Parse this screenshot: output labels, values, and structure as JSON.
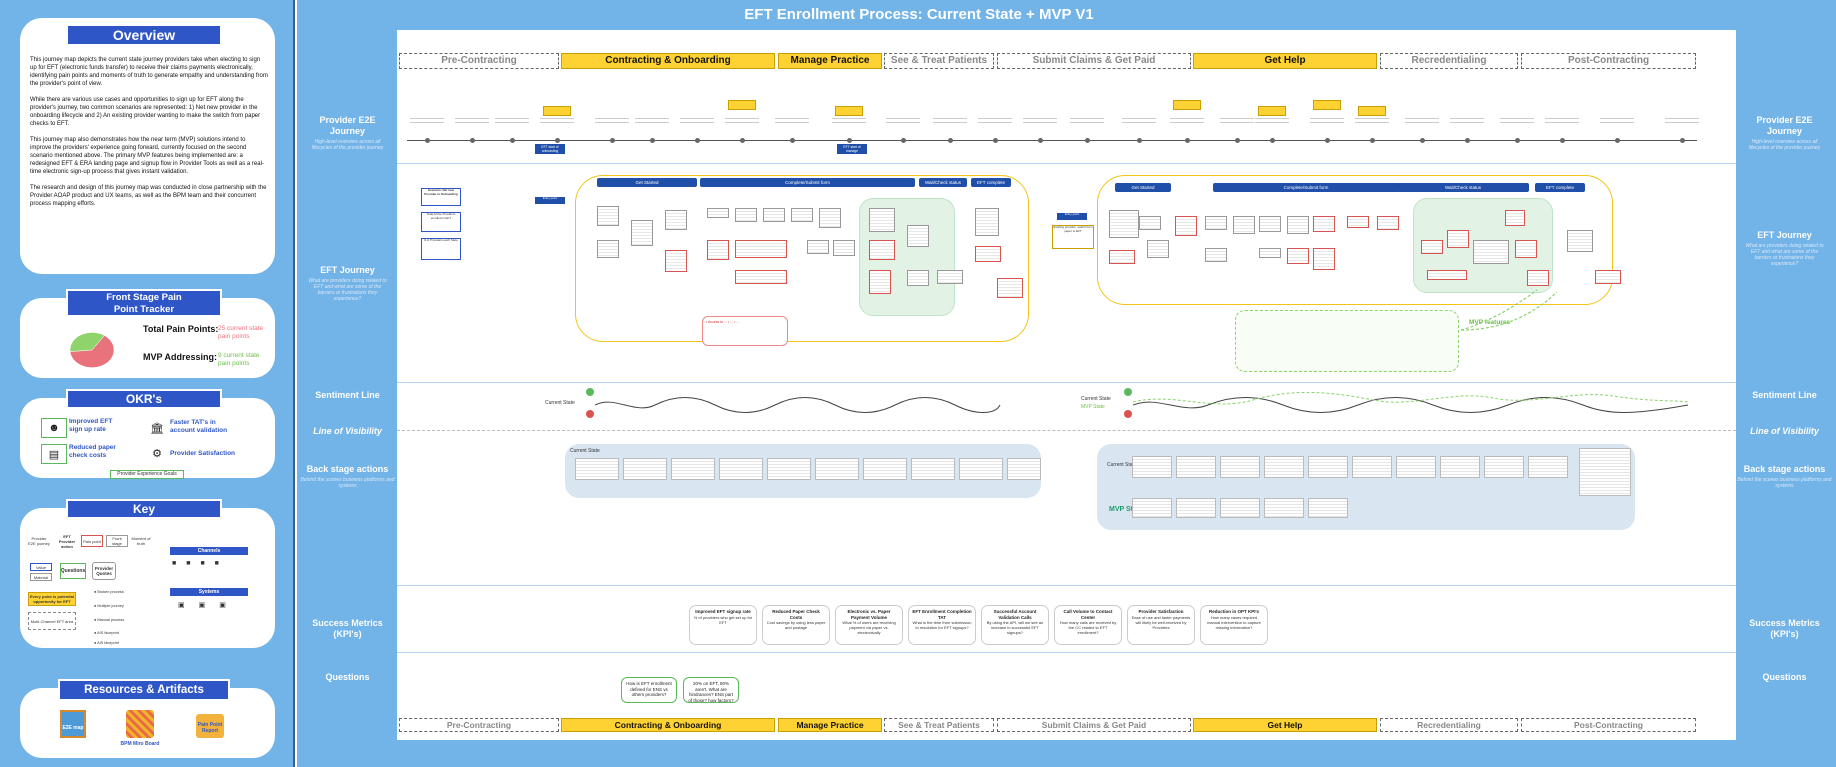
{
  "overview": {
    "title": "Overview",
    "p1": "This journey map depicts the current state journey providers take when electing to sign up for EFT (electronic funds transfer) to receive their claims payments electronically, identifying pain points and moments of truth to generate empathy and understanding from the provider's point of view.",
    "p2": "While there are various use cases and opportunities to sign up for EFT along the provider's journey, two common scenarios are represented: 1) Net new provider in the onboarding lifecycle and 2) An existing provider wanting to make the switch from paper checks to EFT.",
    "p3": "This journey map also demonstrates how the near term (MVP) solutions intend to improve the providers' experience going forward, currently focused on the second scenario mentioned above. The primary MVP features being implemented are: a redesigned EFT & ERA landing page and signup flow in Provider Tools as well as a real-time electronic sign-up process that gives instant validation.",
    "p4": "The research and design of this journey map was conducted in close partnership with the Provider AOAP product and UX teams, as well as the BPM team and their concurrent process mapping efforts."
  },
  "pain_tracker": {
    "title_line1": "Front Stage Pain",
    "title_line2": "Point Tracker",
    "total_label": "Total Pain Points:",
    "total_value": "25 current state pain points",
    "mvp_label": "MVP Addressing:",
    "mvp_value": "9 current state pain points",
    "pie_values": [
      64,
      36
    ],
    "colors": {
      "current": "#e9737c",
      "mvp": "#8fd46a"
    }
  },
  "okr": {
    "title": "OKR's",
    "items": [
      {
        "label": "Improved EFT sign up rate",
        "icon": "users-icon"
      },
      {
        "label": "Faster TAT's in account validation",
        "icon": "bank-icon"
      },
      {
        "label": "Reduced paper check costs",
        "icon": "check-icon"
      },
      {
        "label": "Provider Satisfaction",
        "icon": "gear-icon"
      }
    ],
    "footer": "Provider Experience Goals"
  },
  "key": {
    "title": "Key",
    "questions_label": "Questions",
    "provider_quotes_label": "Provider Quotes",
    "channels_label": "Channels",
    "systems_label": "Systems"
  },
  "resources": {
    "title": "Resources & Artifacts",
    "items": [
      {
        "label": "E2E map"
      },
      {
        "label": "BPM Miro Board"
      },
      {
        "label": "Pain Point Report"
      }
    ]
  },
  "main": {
    "title": "EFT Enrollment Process:  Current State + MVP V1",
    "stages": [
      {
        "label": "Pre-Contracting",
        "highlight": false
      },
      {
        "label": "Contracting & Onboarding",
        "highlight": true
      },
      {
        "label": "Manage Practice",
        "highlight": true
      },
      {
        "label": "See & Treat Patients",
        "highlight": false
      },
      {
        "label": "Submit Claims & Get Paid",
        "highlight": false
      },
      {
        "label": "Get Help",
        "highlight": true
      },
      {
        "label": "Recredentialing",
        "highlight": false
      },
      {
        "label": "Post-Contracting",
        "highlight": false
      }
    ],
    "mvp_features_label": "MVP features",
    "sentiment_current": "Current State",
    "sentiment_mvp": "MVP State",
    "backstage_current": "Current State",
    "backstage_mvp": "MVP State"
  },
  "row_labels": {
    "e2e": {
      "title": "Provider E2E Journey",
      "sub": "High-level overview across all lifecycles of the provider journey"
    },
    "eft": {
      "title": "EFT Journey",
      "sub": "What are providers doing related to EFT and what are some of the barriers or frustrations they experience?"
    },
    "sentiment": {
      "title": "Sentiment Line"
    },
    "visibility": {
      "title": "Line of Visibility"
    },
    "backstage": {
      "title": "Back stage actions",
      "sub": "Behind the scenes business platforms and systems"
    },
    "metrics": {
      "title": "Success Metrics (KPI's)"
    },
    "questions": {
      "title": "Questions"
    }
  },
  "flow_headers": [
    "Get Started",
    "Complete/Submit form",
    "Wait/Check status",
    "EFT complete"
  ],
  "metrics": [
    {
      "title": "Improved EFT signup rate",
      "desc": "% of providers who get set up for EFT"
    },
    {
      "title": "Reduced Paper Check Costs",
      "desc": "Cost savings by using less paper and postage"
    },
    {
      "title": "Electronic vs. Paper Payment Volume",
      "desc": "What % of users are receiving payment via paper vs. electronically"
    },
    {
      "title": "EFT Enrollment Completion TAT",
      "desc": "What is the time from submission to resolution for EFT signups?"
    },
    {
      "title": "Successful Account Validation Calls",
      "desc": "By using the API, will we see an increase in successful EFT signups?"
    },
    {
      "title": "Call Volume to Contact Center",
      "desc": "How many calls are received by the CC related to EFT enrollment?"
    },
    {
      "title": "Provider Satisfaction",
      "desc": "Ease of use and faster payments will likely be well-received by Providers"
    },
    {
      "title": "Reduction in OPT KPI's",
      "desc": "How many cases required manual intervention to capture missing information?"
    }
  ],
  "questions": [
    {
      "text": "How is EFT enrollment defined for ENS vs others providers?"
    },
    {
      "text": "20% on EFT, 80% aren't. What are hindrances? ENS part of those? how factors?"
    }
  ]
}
